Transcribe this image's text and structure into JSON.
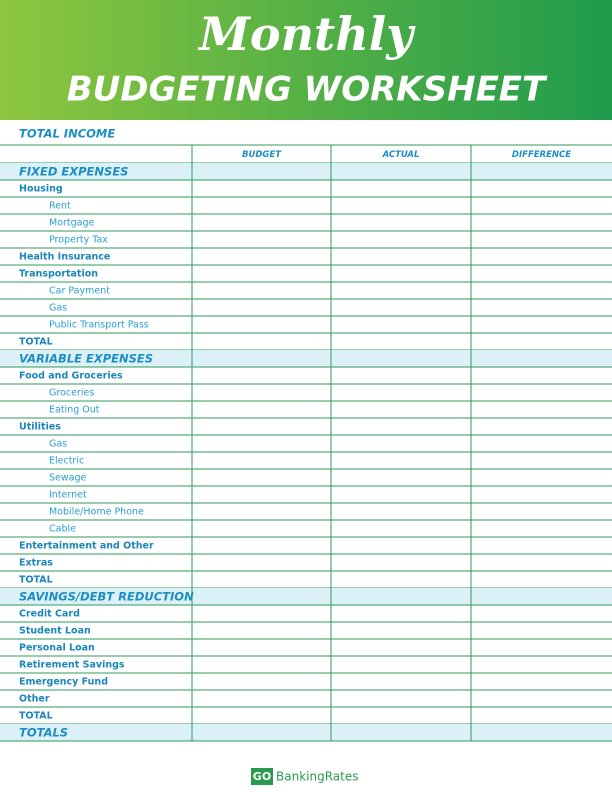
{
  "header": {
    "script_title": "Monthly",
    "title": "BUDGETING WORKSHEET"
  },
  "table": {
    "income_label": "TOTAL INCOME",
    "columns": [
      "BUDGET",
      "ACTUAL",
      "DIFFERENCE"
    ],
    "sections": [
      {
        "title": "FIXED EXPENSES",
        "groups": [
          {
            "label": "Housing",
            "items": [
              "Rent",
              "Mortgage",
              "Property Tax"
            ]
          },
          {
            "label": "Health Insurance",
            "items": []
          },
          {
            "label": "Transportation",
            "items": [
              "Car Payment",
              "Gas",
              "Public Transport Pass"
            ]
          }
        ],
        "total": "TOTAL"
      },
      {
        "title": "VARIABLE EXPENSES",
        "groups": [
          {
            "label": "Food and Groceries",
            "items": [
              "Groceries",
              "Eating Out"
            ]
          },
          {
            "label": "Utilities",
            "items": [
              "Gas",
              "Electric",
              "Sewage",
              "Internet",
              "Mobile/Home Phone",
              "Cable"
            ]
          },
          {
            "label": "Entertainment and Other",
            "items": []
          },
          {
            "label": "Extras",
            "items": []
          }
        ],
        "total": "TOTAL"
      },
      {
        "title": "SAVINGS/DEBT REDUCTION",
        "groups": [
          {
            "label": "Credit Card",
            "items": []
          },
          {
            "label": "Student Loan",
            "items": []
          },
          {
            "label": "Personal Loan",
            "items": []
          },
          {
            "label": "Retirement Savings",
            "items": []
          },
          {
            "label": "Emergency Fund",
            "items": []
          },
          {
            "label": "Other",
            "items": []
          }
        ],
        "total": "TOTAL"
      }
    ],
    "grand_total": "TOTALS"
  },
  "footer": {
    "logo_mark": "GO",
    "logo_text": "BankingRates"
  }
}
